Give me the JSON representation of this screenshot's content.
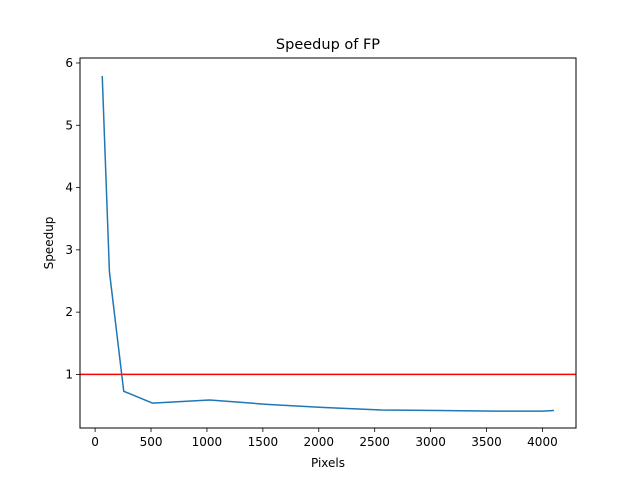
{
  "chart_data": {
    "type": "line",
    "title": "Speedup of FP",
    "xlabel": "Pixels",
    "ylabel": "Speedup",
    "xlim": [
      -135,
      4300
    ],
    "ylim": [
      0.14,
      6.08
    ],
    "xticks": [
      0,
      500,
      1000,
      1500,
      2000,
      2500,
      3000,
      3500,
      4000
    ],
    "yticks": [
      1,
      2,
      3,
      4,
      5,
      6
    ],
    "grid": false,
    "series": [
      {
        "color": "#1f77b4",
        "x": [
          64,
          128,
          256,
          512,
          1024,
          1536,
          2048,
          2560,
          3072,
          3584,
          4000,
          4096
        ],
        "y": [
          5.78,
          2.65,
          0.73,
          0.54,
          0.59,
          0.52,
          0.47,
          0.43,
          0.42,
          0.41,
          0.41,
          0.42
        ]
      }
    ],
    "reference_lines": [
      {
        "orientation": "horizontal",
        "y": 1,
        "color": "#ff0000"
      }
    ]
  }
}
